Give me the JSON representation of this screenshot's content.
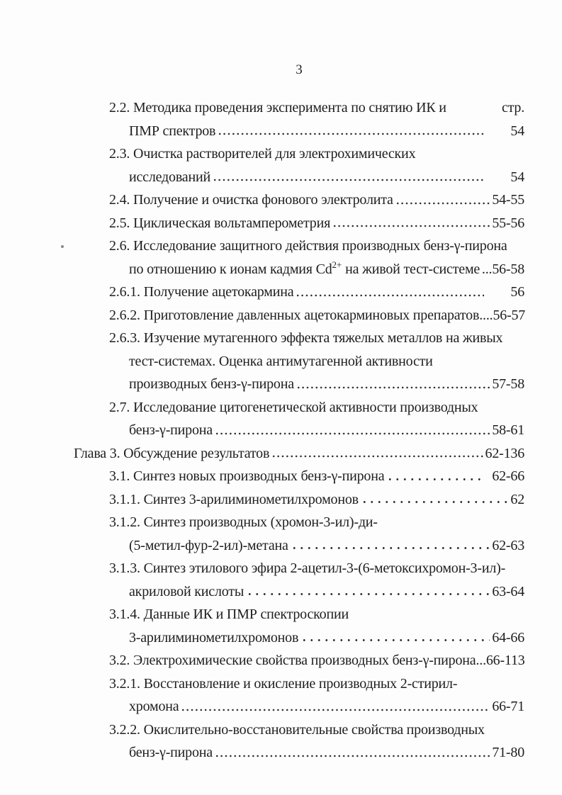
{
  "page": {
    "number": "3"
  },
  "toc": {
    "page_col_header": "стр.",
    "lines": [
      {
        "text": "2.2. Методика проведения эксперимента по снятию ИК и"
      },
      {
        "text": "ПМР спектров",
        "page": "54"
      },
      {
        "text": "2.3. Очистка растворителей для электрохимических"
      },
      {
        "text": "исследований",
        "page": "54"
      },
      {
        "text": "2.4. Получение и очистка фонового электролита",
        "page": "54-55"
      },
      {
        "text": "2.5. Циклическая вольтамперометрия",
        "page": "55-56"
      },
      {
        "text": "2.6. Исследование защитного действия производных бенз-γ-пирона"
      },
      {
        "text_pre": "по отношению к ионам кадмия Cd",
        "sup": "2+",
        "text_post": " на живой тест-системе",
        "leader_text": "...",
        "page": "56-58"
      },
      {
        "text": "2.6.1. Получение ацетокармина",
        "page": "56"
      },
      {
        "text": "2.6.2. Приготовление давленных ацетокарминовых препаратов",
        "leader_text": "....",
        "page": "56-57"
      },
      {
        "text": "2.6.3. Изучение мутагенного эффекта тяжелых металлов на живых"
      },
      {
        "text": "тест-системах. Оценка антимутагенной активности"
      },
      {
        "text": "производных бенз-γ-пирона",
        "page": "57-58"
      },
      {
        "text": "2.7. Исследование цитогенетической активности производных"
      },
      {
        "text": "бенз-γ-пирона",
        "page": "58-61"
      },
      {
        "text": "Глава 3. Обсуждение результатов",
        "page": "62-136"
      },
      {
        "text": "3.1. Синтез новых производных бенз-γ-пирона",
        "page": "62-66"
      },
      {
        "text": "3.1.1. Синтез 3-арилиминометилхромонов",
        "page": "62"
      },
      {
        "text": "3.1.2. Синтез производных (хромон-3-ил)-ди-"
      },
      {
        "text": "(5-метил-фур-2-ил)-метана",
        "page": "62-63"
      },
      {
        "text": "3.1.3. Синтез этилового эфира 2-ацетил-3-(6-метоксихромон-3-ил)-"
      },
      {
        "text": "акриловой кислоты",
        "page": "63-64"
      },
      {
        "text": "3.1.4. Данные ИК и ПМР спектроскопии"
      },
      {
        "text": "3-арилиминометилхромонов",
        "page": "64-66"
      },
      {
        "text": "3.2. Электрохимические свойства производных бенз-γ-пирона",
        "leader_text": "...",
        "page": "66-113"
      },
      {
        "text": "3.2.1. Восстановление и окисление производных 2-стирил-"
      },
      {
        "text": "хромона",
        "page": "66-71"
      },
      {
        "text": "3.2.2. Окислительно-восстановительные свойства производных"
      },
      {
        "text": "бенз-γ-пирона",
        "page": "71-80"
      }
    ]
  }
}
